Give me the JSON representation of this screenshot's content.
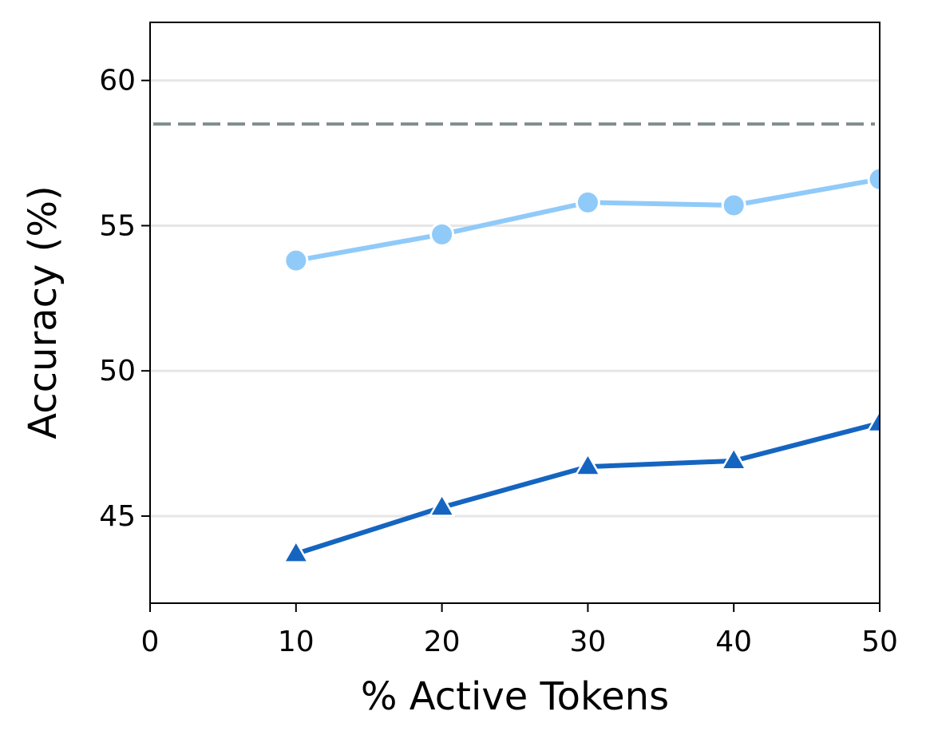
{
  "chart_data": {
    "type": "line",
    "title": "",
    "xlabel": "% Active Tokens",
    "ylabel": "Accuracy (%)",
    "xlim": [
      0,
      50
    ],
    "ylim": [
      42,
      62
    ],
    "xticks": [
      0,
      10,
      20,
      30,
      40,
      50
    ],
    "yticks": [
      45,
      50,
      55,
      60
    ],
    "grid": "horizontal",
    "x": [
      10,
      20,
      30,
      40,
      50
    ],
    "series": [
      {
        "values": [
          53.8,
          54.7,
          55.8,
          55.7,
          56.6
        ],
        "color": "#90CAF9",
        "marker": "circle"
      },
      {
        "values": [
          43.7,
          45.3,
          46.7,
          46.9,
          48.2
        ],
        "color": "#1565C0",
        "marker": "triangle"
      }
    ],
    "reference_lines": [
      {
        "y": 58.5,
        "style": "dashed",
        "color": "#7F8C8D"
      }
    ]
  }
}
